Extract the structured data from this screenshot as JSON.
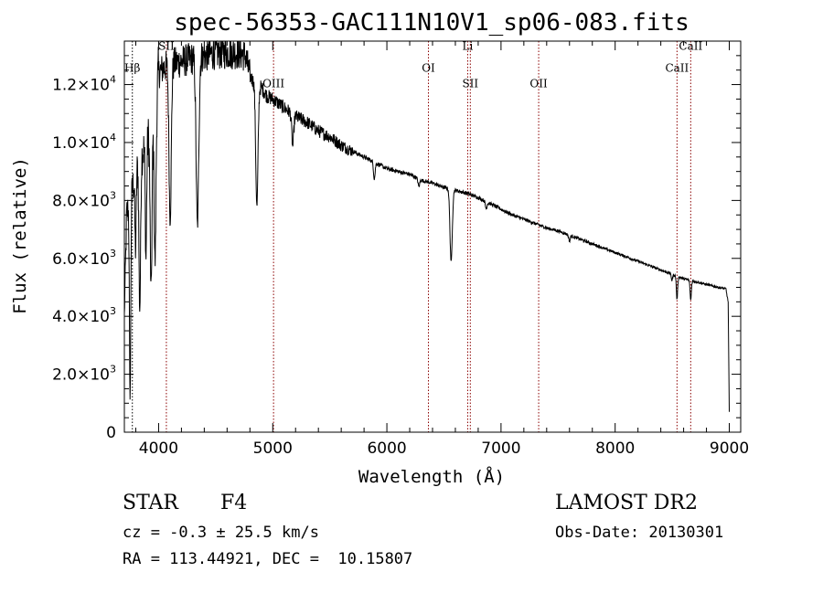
{
  "chart_data": {
    "type": "line",
    "title": "spec-56353-GAC111N10V1_sp06-083.fits",
    "xlabel": "Wavelength (Å)",
    "ylabel": "Flux (relative)",
    "xlim": [
      3700,
      9100
    ],
    "ylim": [
      0,
      13500
    ],
    "xticks": [
      4000,
      5000,
      6000,
      7000,
      8000,
      9000
    ],
    "yticks": [
      {
        "value": 0,
        "mant": "0",
        "exp": ""
      },
      {
        "value": 2000,
        "mant": "2.0×10",
        "exp": "3"
      },
      {
        "value": 4000,
        "mant": "4.0×10",
        "exp": "3"
      },
      {
        "value": 6000,
        "mant": "6.0×10",
        "exp": "3"
      },
      {
        "value": 8000,
        "mant": "8.0×10",
        "exp": "3"
      },
      {
        "value": 10000,
        "mant": "1.0×10",
        "exp": "4"
      },
      {
        "value": 12000,
        "mant": "1.2×10",
        "exp": "4"
      }
    ],
    "continuum": [
      [
        3700,
        4000
      ],
      [
        3720,
        7500
      ],
      [
        3760,
        8200
      ],
      [
        3800,
        9000
      ],
      [
        3850,
        9600
      ],
      [
        3900,
        10000
      ],
      [
        3950,
        11300
      ],
      [
        4000,
        12400
      ],
      [
        4050,
        12600
      ],
      [
        4100,
        12700
      ],
      [
        4200,
        12800
      ],
      [
        4300,
        12900
      ],
      [
        4400,
        13000
      ],
      [
        4500,
        13100
      ],
      [
        4600,
        13100
      ],
      [
        4700,
        13100
      ],
      [
        4760,
        13000
      ],
      [
        4800,
        12300
      ],
      [
        4850,
        12000
      ],
      [
        4900,
        11900
      ],
      [
        4950,
        11600
      ],
      [
        5000,
        11500
      ],
      [
        5100,
        11200
      ],
      [
        5200,
        10900
      ],
      [
        5300,
        10700
      ],
      [
        5400,
        10400
      ],
      [
        5500,
        10200
      ],
      [
        5600,
        9900
      ],
      [
        5700,
        9700
      ],
      [
        5800,
        9500
      ],
      [
        5900,
        9300
      ],
      [
        6000,
        9100
      ],
      [
        6100,
        9000
      ],
      [
        6200,
        8900
      ],
      [
        6300,
        8700
      ],
      [
        6400,
        8600
      ],
      [
        6500,
        8450
      ],
      [
        6600,
        8350
      ],
      [
        6700,
        8250
      ],
      [
        6800,
        8100
      ],
      [
        6900,
        7900
      ],
      [
        7000,
        7700
      ],
      [
        7100,
        7500
      ],
      [
        7200,
        7350
      ],
      [
        7300,
        7200
      ],
      [
        7400,
        7050
      ],
      [
        7500,
        6950
      ],
      [
        7600,
        6800
      ],
      [
        7700,
        6650
      ],
      [
        7800,
        6500
      ],
      [
        7900,
        6350
      ],
      [
        8000,
        6200
      ],
      [
        8100,
        6050
      ],
      [
        8200,
        5900
      ],
      [
        8300,
        5750
      ],
      [
        8400,
        5600
      ],
      [
        8500,
        5450
      ],
      [
        8600,
        5300
      ],
      [
        8700,
        5200
      ],
      [
        8800,
        5100
      ],
      [
        8900,
        5000
      ],
      [
        8970,
        4950
      ],
      [
        8990,
        4500
      ],
      [
        9000,
        700
      ]
    ],
    "absorption": [
      {
        "center": 3750,
        "width": 8,
        "depth": 0.85
      },
      {
        "center": 3798,
        "width": 8,
        "depth": 0.3
      },
      {
        "center": 3835,
        "width": 10,
        "depth": 0.55
      },
      {
        "center": 3889,
        "width": 8,
        "depth": 0.4
      },
      {
        "center": 3934,
        "width": 12,
        "depth": 0.55
      },
      {
        "center": 3969,
        "width": 12,
        "depth": 0.5
      },
      {
        "center": 4101,
        "width": 14,
        "depth": 0.42
      },
      {
        "center": 4340,
        "width": 16,
        "depth": 0.45
      },
      {
        "center": 4861,
        "width": 14,
        "depth": 0.35
      },
      {
        "center": 5175,
        "width": 12,
        "depth": 0.1
      },
      {
        "center": 5890,
        "width": 10,
        "depth": 0.06
      },
      {
        "center": 6280,
        "width": 10,
        "depth": 0.03
      },
      {
        "center": 6563,
        "width": 14,
        "depth": 0.3
      },
      {
        "center": 6870,
        "width": 10,
        "depth": 0.03
      },
      {
        "center": 7600,
        "width": 10,
        "depth": 0.03
      },
      {
        "center": 8498,
        "width": 8,
        "depth": 0.04
      },
      {
        "center": 8542,
        "width": 8,
        "depth": 0.15
      },
      {
        "center": 8662,
        "width": 8,
        "depth": 0.13
      }
    ],
    "lines": [
      {
        "label": "Hβ",
        "wave": 3770,
        "label_y": 12450,
        "color": "#000000"
      },
      {
        "label": "SII",
        "wave": 4068,
        "label_y": 13200,
        "color": "#8B0000"
      },
      {
        "label": "OIII",
        "wave": 5007,
        "label_y": 11900,
        "color": "#8B0000"
      },
      {
        "label": "OI",
        "wave": 6364,
        "label_y": 12450,
        "color": "#8B0000"
      },
      {
        "label": "Li",
        "wave": 6708,
        "label_y": 13200,
        "color": "#8B0000"
      },
      {
        "label": "SII",
        "wave": 6731,
        "label_y": 11900,
        "color": "#8B0000"
      },
      {
        "label": "OII",
        "wave": 7330,
        "label_y": 11900,
        "color": "#8B0000"
      },
      {
        "label": "CaII",
        "wave": 8542,
        "label_y": 12450,
        "color": "#8B0000"
      },
      {
        "label": "CaII",
        "wave": 8662,
        "label_y": 13200,
        "color": "#8B0000"
      }
    ]
  },
  "info": {
    "object_type": "STAR",
    "subclass": "F4",
    "survey": "LAMOST DR2",
    "cz": "cz = -0.3 ± 25.5 km/s",
    "obs_date": "Obs-Date: 20130301",
    "radec": "RA = 113.44921, DEC =  10.15807"
  }
}
